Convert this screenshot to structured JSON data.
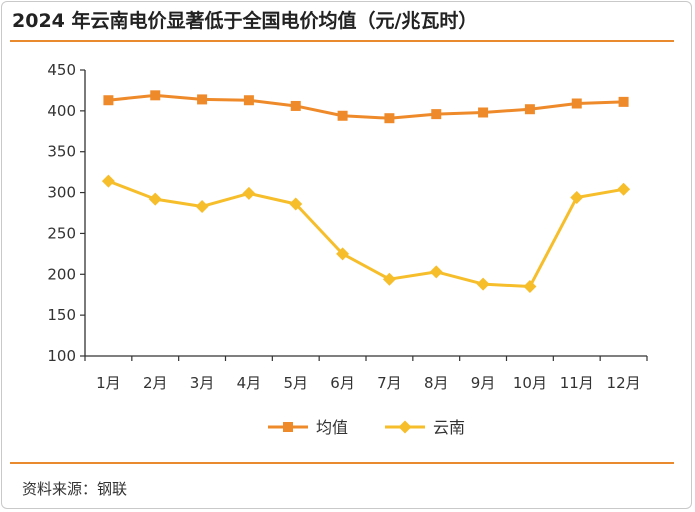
{
  "title": "2024 年云南电价显著低于全国电价均值（元/兆瓦时）",
  "source": "资料来源：钢联",
  "colors": {
    "accent_rule": "#e98a2e",
    "series_avg": "#ef8a2a",
    "series_yunnan": "#f7be2b",
    "axis": "#333333"
  },
  "chart_data": {
    "type": "line",
    "title": "2024 年云南电价显著低于全国电价均值（元/兆瓦时）",
    "xlabel": "",
    "ylabel": "",
    "categories": [
      "1月",
      "2月",
      "3月",
      "4月",
      "5月",
      "6月",
      "7月",
      "8月",
      "9月",
      "10月",
      "11月",
      "12月"
    ],
    "ylim": [
      100,
      450
    ],
    "yticks": [
      100,
      150,
      200,
      250,
      300,
      350,
      400,
      450
    ],
    "grid": false,
    "legend_position": "bottom",
    "series": [
      {
        "name": "均值",
        "marker": "square",
        "color": "#ef8a2a",
        "values": [
          413,
          419,
          414,
          413,
          406,
          394,
          391,
          396,
          398,
          402,
          409,
          411
        ]
      },
      {
        "name": "云南",
        "marker": "diamond",
        "color": "#f7be2b",
        "values": [
          314,
          292,
          283,
          299,
          286,
          225,
          194,
          203,
          188,
          185,
          294,
          304
        ]
      }
    ]
  }
}
